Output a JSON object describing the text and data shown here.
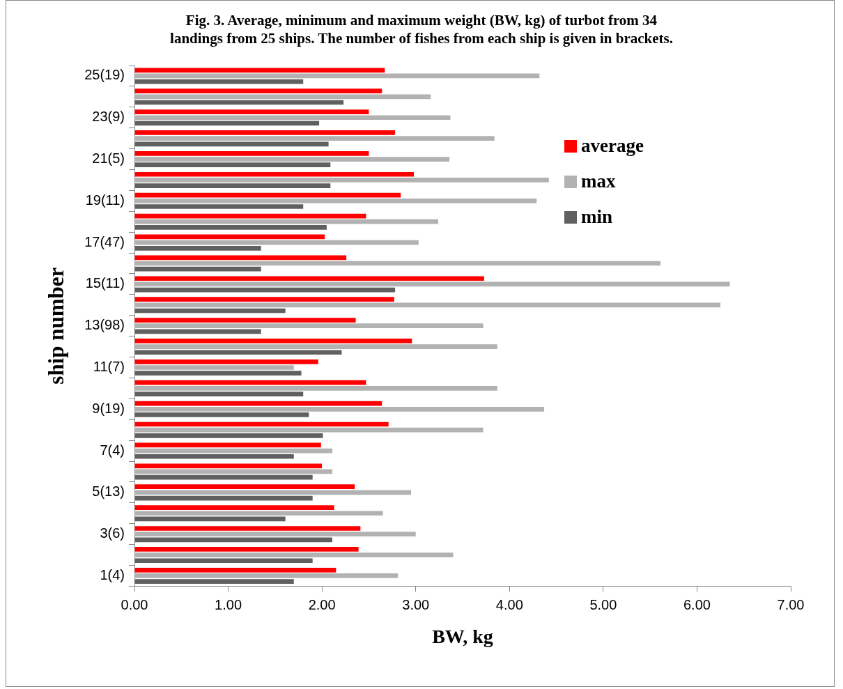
{
  "chart_data": {
    "type": "bar",
    "orientation": "horizontal",
    "title": "Fig. 3. Average, minimum and maximum weight (BW, kg) of turbot from 34 landings from 25 ships. The number of fishes from each ship is given in brackets.",
    "xlabel": "BW, kg",
    "ylabel": "ship number",
    "categories": [
      "25(19)",
      null,
      "23(9)",
      null,
      "21(5)",
      null,
      "19(11)",
      null,
      "17(47)",
      null,
      "15(11)",
      null,
      "13(98)",
      null,
      "11(7)",
      null,
      "9(19)",
      null,
      "7(4)",
      null,
      "5(13)",
      null,
      "3(6)",
      null,
      "1(4)"
    ],
    "series": [
      {
        "name": "average",
        "color": "#ff0000",
        "values": [
          2.67,
          2.64,
          2.5,
          2.78,
          2.5,
          2.98,
          2.84,
          2.47,
          2.03,
          2.26,
          3.73,
          2.77,
          2.36,
          2.96,
          1.96,
          2.47,
          2.64,
          2.71,
          1.99,
          2.0,
          2.35,
          2.13,
          2.41,
          2.39,
          2.15
        ]
      },
      {
        "name": "max",
        "color": "#b2b2b2",
        "values": [
          4.32,
          3.16,
          3.37,
          3.84,
          3.36,
          4.42,
          4.29,
          3.24,
          3.03,
          5.61,
          6.35,
          6.25,
          3.72,
          3.87,
          1.7,
          3.87,
          4.37,
          3.72,
          2.11,
          2.11,
          2.95,
          2.65,
          3.0,
          3.4,
          2.81
        ]
      },
      {
        "name": "min",
        "color": "#606060",
        "values": [
          1.8,
          2.23,
          1.97,
          2.07,
          2.09,
          2.09,
          1.8,
          2.05,
          1.35,
          1.35,
          2.78,
          1.61,
          1.35,
          2.21,
          1.78,
          1.8,
          1.86,
          2.01,
          1.7,
          1.9,
          1.9,
          1.61,
          2.11,
          1.9,
          1.7
        ]
      }
    ],
    "xlim": [
      0,
      7
    ],
    "xticks": [
      {
        "value": 0,
        "label": "0.00"
      },
      {
        "value": 1,
        "label": "1.00"
      },
      {
        "value": 2,
        "label": "2.00"
      },
      {
        "value": 3,
        "label": "3.00"
      },
      {
        "value": 4,
        "label": "4.00"
      },
      {
        "value": 5,
        "label": "5.00"
      },
      {
        "value": 6,
        "label": "6.00"
      },
      {
        "value": 7,
        "label": "7.00"
      }
    ],
    "grid": false,
    "legend": "top right"
  }
}
